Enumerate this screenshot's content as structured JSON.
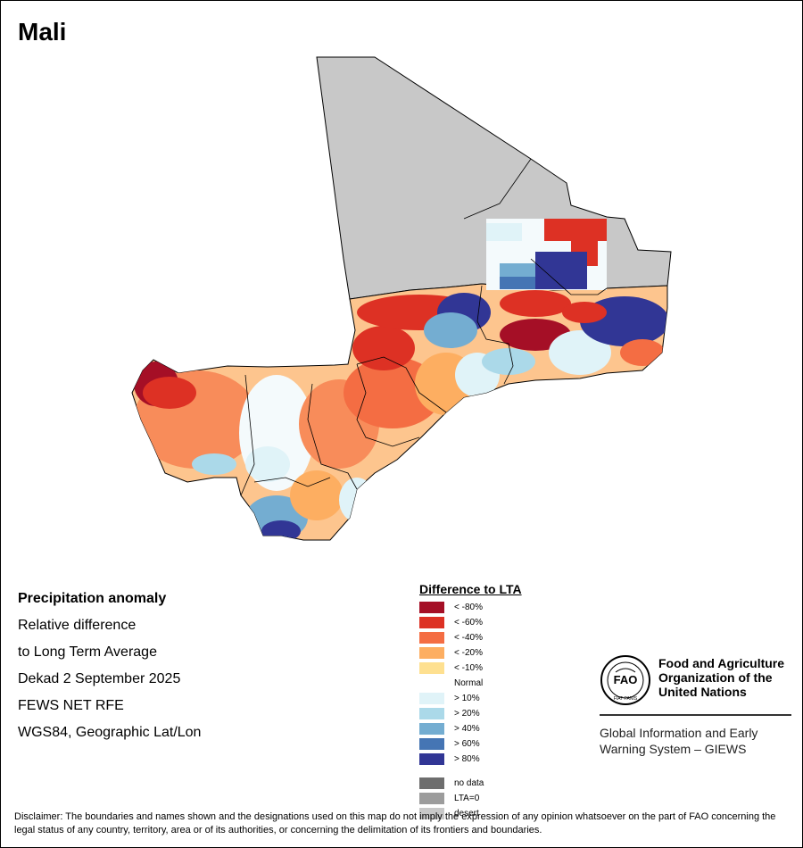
{
  "title": "Mali",
  "info": {
    "heading": "Precipitation anomaly",
    "line1": "Relative difference",
    "line2": "to Long Term Average",
    "period": "Dekad 2 September 2025",
    "source": "FEWS NET RFE",
    "projection": "WGS84, Geographic Lat/Lon"
  },
  "legend": {
    "title": "Difference to LTA",
    "classes": [
      {
        "label": "< -80%",
        "color": "#a50f26"
      },
      {
        "label": "< -60%",
        "color": "#dd3124"
      },
      {
        "label": "< -40%",
        "color": "#f46d43"
      },
      {
        "label": "< -20%",
        "color": "#fdae61"
      },
      {
        "label": "< -10%",
        "color": "#fee090"
      },
      {
        "label": "Normal",
        "color": "#ffffff"
      },
      {
        "label": "> 10%",
        "color": "#e0f3f8"
      },
      {
        "label": "> 20%",
        "color": "#abd9e9"
      },
      {
        "label": "> 40%",
        "color": "#74add1"
      },
      {
        "label": "> 60%",
        "color": "#4575b4"
      },
      {
        "label": "> 80%",
        "color": "#313695"
      }
    ],
    "extra": [
      {
        "label": "no data",
        "color": "#6e6e6e"
      },
      {
        "label": "LTA=0",
        "color": "#9c9c9c"
      },
      {
        "label": "desert",
        "color": "#c8c8c8"
      }
    ]
  },
  "organization": {
    "name_line1": "Food and Agriculture",
    "name_line2": "Organization of the",
    "name_line3": "United Nations",
    "logo_text": "FAO",
    "logo_motto": "FIAT PANIS",
    "system_line1": "Global Information and Early",
    "system_line2": "Warning System – GIEWS"
  },
  "disclaimer": "Disclaimer: The boundaries and names shown and the designations used on this map do not imply the expression of any opinion whatsoever on the part of FAO concerning the legal status of any country, territory, area or of its authorities, or concerning the delimitation of its frontiers and boundaries."
}
